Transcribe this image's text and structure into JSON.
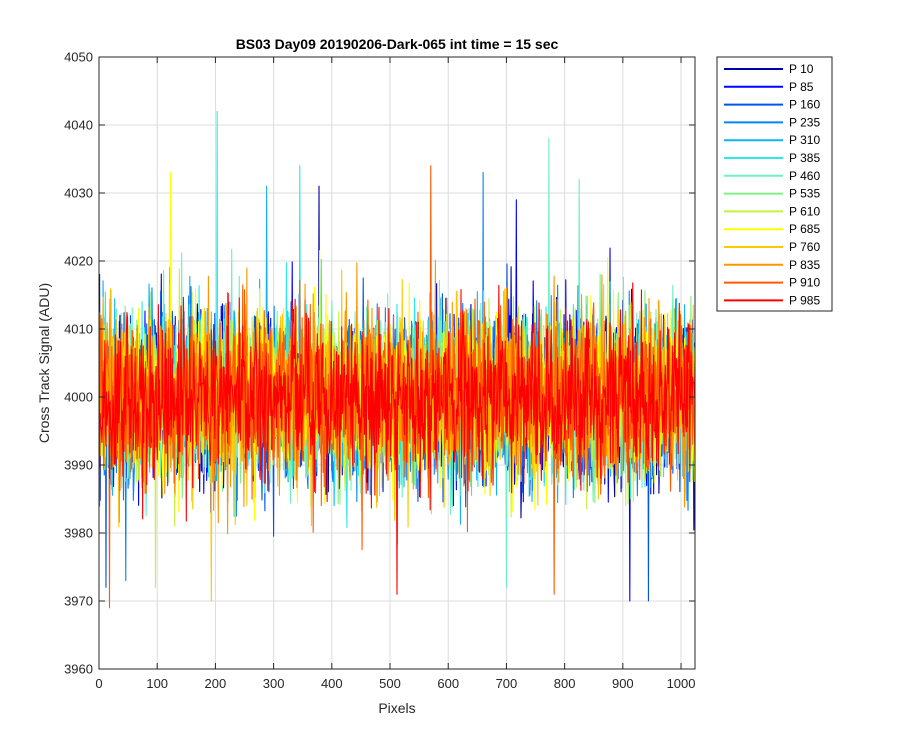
{
  "chart_data": {
    "type": "line",
    "title": "BS03 Day09 20190206-Dark-065 int time = 15 sec",
    "xlabel": "Pixels",
    "ylabel": "Cross Track Signal (ADU)",
    "xlim": [
      0,
      1024
    ],
    "ylim": [
      3960,
      4050
    ],
    "xticks": [
      0,
      100,
      200,
      300,
      400,
      500,
      600,
      700,
      800,
      900,
      1000
    ],
    "yticks": [
      3960,
      3970,
      3980,
      3990,
      4000,
      4010,
      4020,
      4030,
      4040,
      4050
    ],
    "grid": true,
    "legend_position": "outside-top-right",
    "noise": {
      "center": 4000,
      "sd": 6
    },
    "spikes": [
      {
        "series": 5,
        "x": 203,
        "y": 4042
      },
      {
        "series": 6,
        "x": 773,
        "y": 4038
      },
      {
        "series": 12,
        "x": 570,
        "y": 4034
      },
      {
        "series": 5,
        "x": 345,
        "y": 4034
      },
      {
        "series": 9,
        "x": 123,
        "y": 4033
      },
      {
        "series": 3,
        "x": 660,
        "y": 4033
      },
      {
        "series": 0,
        "x": 378,
        "y": 4031
      },
      {
        "series": 4,
        "x": 288,
        "y": 4031
      },
      {
        "series": 1,
        "x": 717,
        "y": 4029
      },
      {
        "series": 6,
        "x": 825,
        "y": 4032
      },
      {
        "series": 12,
        "x": 18,
        "y": 3969
      },
      {
        "series": 10,
        "x": 193,
        "y": 3970
      },
      {
        "series": 13,
        "x": 512,
        "y": 3971
      },
      {
        "series": 12,
        "x": 782,
        "y": 3971
      },
      {
        "series": 1,
        "x": 912,
        "y": 3970
      },
      {
        "series": 2,
        "x": 944,
        "y": 3970
      },
      {
        "series": 2,
        "x": 12,
        "y": 3972
      },
      {
        "series": 8,
        "x": 97,
        "y": 3972
      },
      {
        "series": 6,
        "x": 700,
        "y": 3972
      },
      {
        "series": 3,
        "x": 46,
        "y": 3973
      },
      {
        "series": 0,
        "x": 1,
        "y": 4018
      }
    ],
    "series": [
      {
        "name": "P 10",
        "color": "#0000a8"
      },
      {
        "name": "P 85",
        "color": "#0000ff"
      },
      {
        "name": "P 160",
        "color": "#0055e6"
      },
      {
        "name": "P 235",
        "color": "#0a85f0"
      },
      {
        "name": "P 310",
        "color": "#11b2f5"
      },
      {
        "name": "P 385",
        "color": "#2ee8e8"
      },
      {
        "name": "P 460",
        "color": "#70f0c0"
      },
      {
        "name": "P 535",
        "color": "#80f080"
      },
      {
        "name": "P 610",
        "color": "#c8f040"
      },
      {
        "name": "P 685",
        "color": "#ffff00"
      },
      {
        "name": "P 760",
        "color": "#ffc800"
      },
      {
        "name": "P 835",
        "color": "#ff9600"
      },
      {
        "name": "P 910",
        "color": "#ff5a00"
      },
      {
        "name": "P 985",
        "color": "#ff0000"
      }
    ]
  }
}
